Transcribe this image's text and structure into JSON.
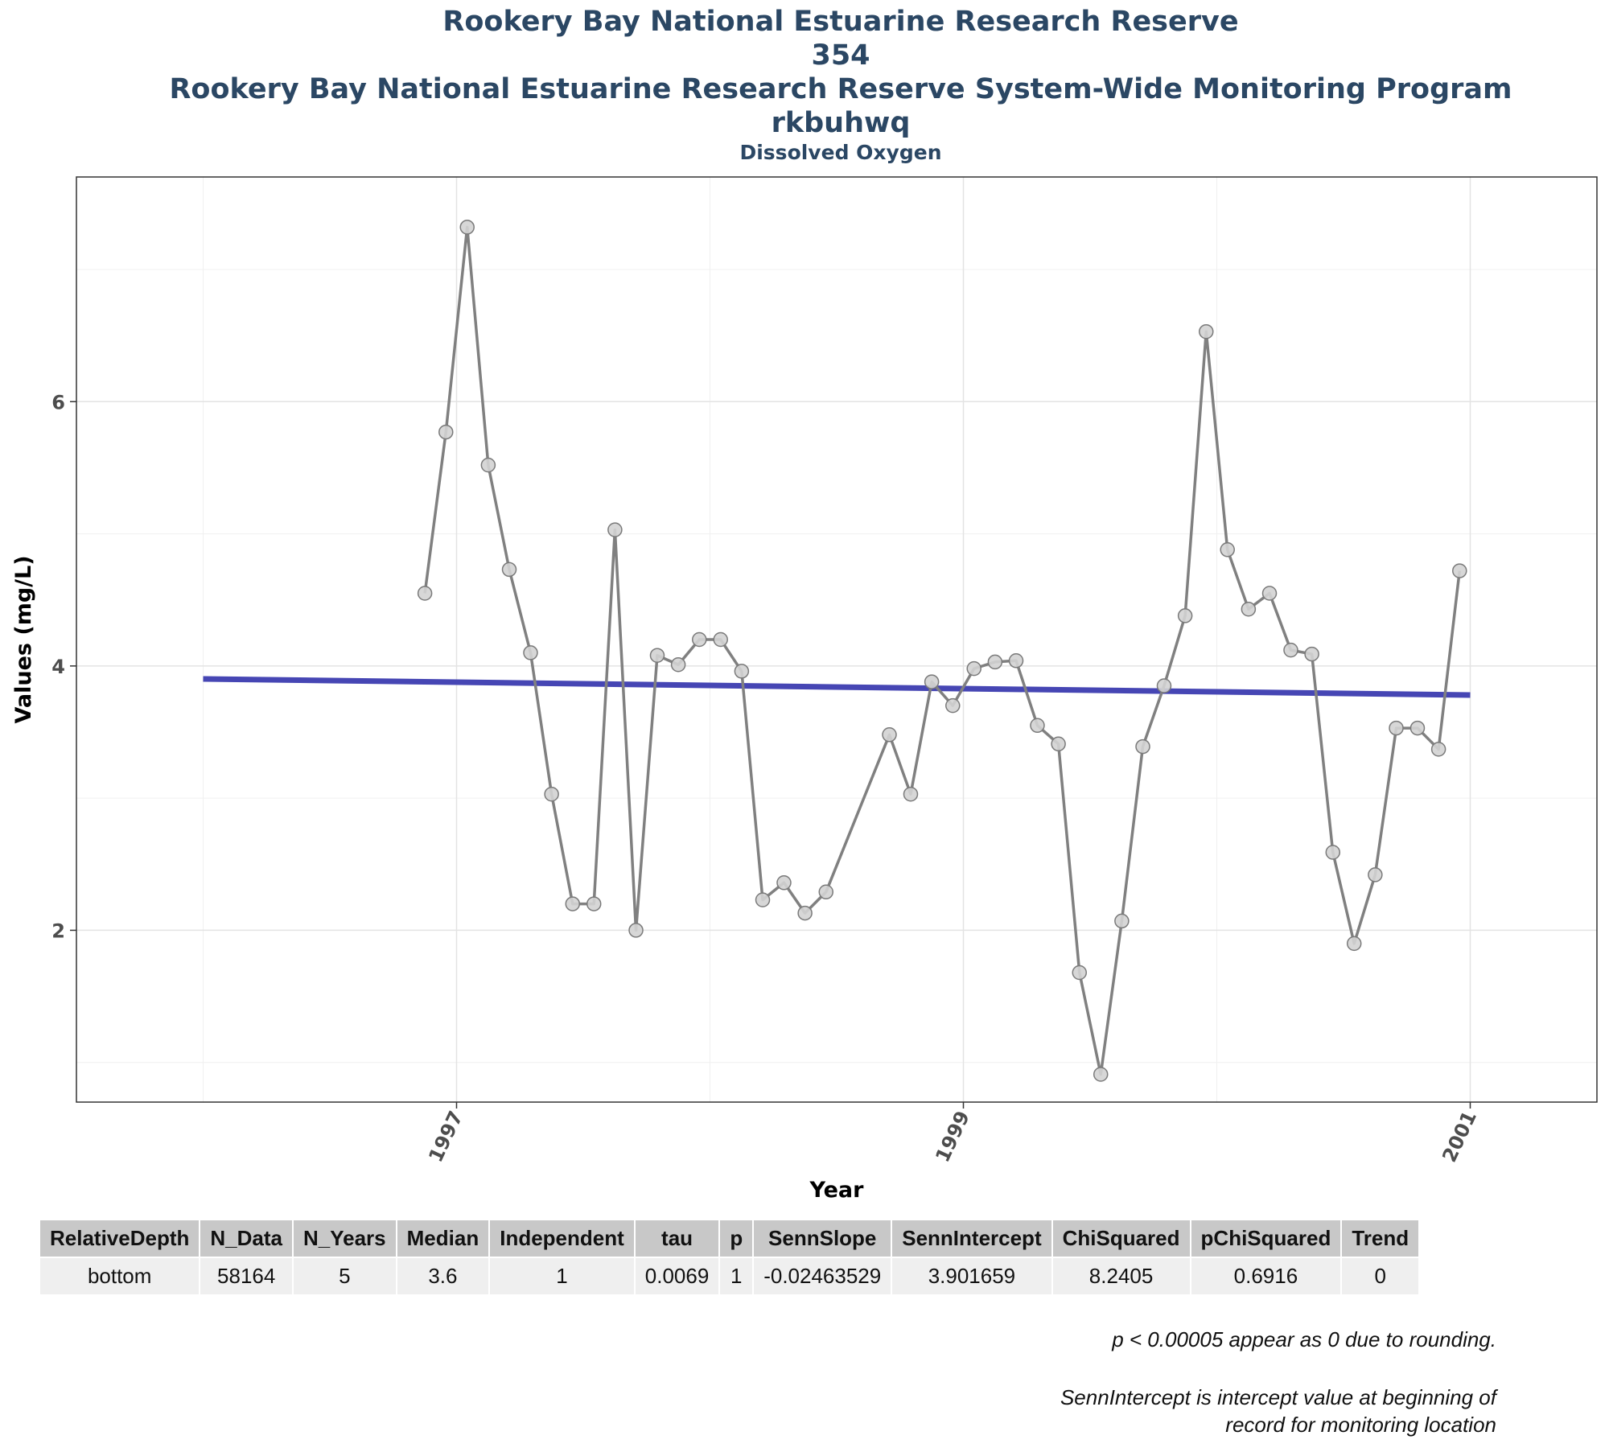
{
  "titles": {
    "line1": "Rookery Bay National Estuarine Research Reserve",
    "line2": "354",
    "line3": "Rookery Bay National Estuarine Research Reserve System-Wide Monitoring Program",
    "line4": "rkbuhwq",
    "subtitle": "Dissolved Oxygen"
  },
  "chart_data": {
    "type": "line",
    "title": "Dissolved Oxygen",
    "xlabel": "Year",
    "ylabel": "Values (mg/L)",
    "xlim": [
      1995.5,
      2001.5
    ],
    "ylim": [
      0.7,
      7.7
    ],
    "x_ticks": [
      1997,
      1999,
      2001
    ],
    "x_tick_labels": [
      "1997",
      "1999",
      "2001"
    ],
    "y_ticks": [
      2,
      4,
      6
    ],
    "y_tick_labels": [
      "2",
      "4",
      "6"
    ],
    "grid": true,
    "colors": {
      "series": "#808080",
      "point_fill": "#d3d3d3",
      "trend": "#4646b4"
    },
    "series": [
      {
        "x": [
          1996.875,
          1996.958,
          1997.042,
          1997.125,
          1997.208,
          1997.292,
          1997.375,
          1997.458,
          1997.542,
          1997.625,
          1997.708,
          1997.792,
          1997.875,
          1997.958,
          1998.042,
          1998.125,
          1998.208,
          1998.292,
          1998.375,
          1998.458,
          1998.708,
          1998.792,
          1998.875,
          1998.958,
          1999.042,
          1999.125,
          1999.208,
          1999.292,
          1999.375,
          1999.458,
          1999.542,
          1999.625,
          1999.708,
          1999.792,
          1999.875,
          1999.958,
          2000.042,
          2000.125,
          2000.208,
          2000.292,
          2000.375,
          2000.458,
          2000.542,
          2000.625,
          2000.708,
          2000.792,
          2000.875,
          2000.958
        ],
        "values": [
          4.55,
          5.77,
          7.32,
          5.52,
          4.73,
          4.1,
          3.03,
          2.2,
          2.2,
          5.03,
          2.0,
          4.08,
          4.01,
          4.2,
          4.2,
          3.96,
          2.23,
          2.36,
          2.13,
          2.29,
          3.48,
          3.03,
          3.88,
          3.7,
          3.98,
          4.03,
          4.04,
          3.55,
          3.41,
          1.68,
          0.91,
          2.07,
          3.39,
          3.85,
          4.38,
          6.53,
          4.88,
          4.43,
          4.55,
          4.12,
          4.09,
          2.59,
          1.9,
          2.42,
          3.53,
          3.53,
          3.37,
          4.72
        ]
      }
    ],
    "trend_line": {
      "x": [
        1996.0,
        2001.0
      ],
      "values": [
        3.901659,
        3.78
      ]
    }
  },
  "table": {
    "headers": [
      "RelativeDepth",
      "N_Data",
      "N_Years",
      "Median",
      "Independent",
      "tau",
      "p",
      "SennSlope",
      "SennIntercept",
      "ChiSquared",
      "pChiSquared",
      "Trend"
    ],
    "rows": [
      [
        "bottom",
        "58164",
        "5",
        "3.6",
        "1",
        "0.0069",
        "1",
        "-0.02463529",
        "3.901659",
        "8.2405",
        "0.6916",
        "0"
      ]
    ]
  },
  "notes": {
    "note1": "p < 0.00005 appear as 0 due to rounding.",
    "note2a": "SennIntercept is intercept value at beginning of",
    "note2b": "record for monitoring location"
  }
}
